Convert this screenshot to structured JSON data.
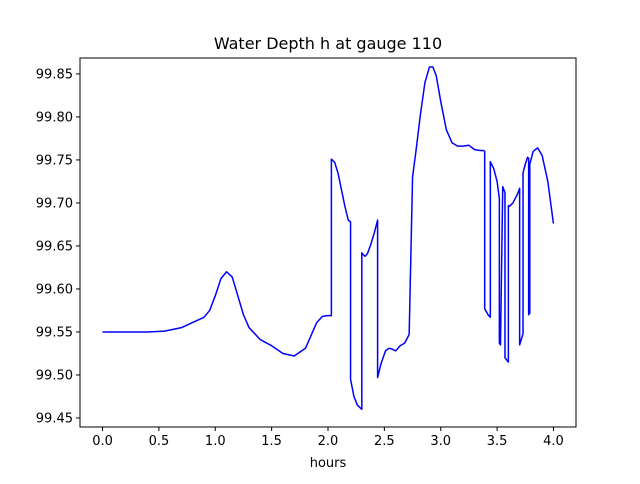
{
  "chart_data": {
    "type": "line",
    "title": "Water Depth h at gauge 110",
    "xlabel": "hours",
    "ylabel": "",
    "xlim": [
      -0.2,
      4.2
    ],
    "ylim": [
      99.4395,
      99.8685
    ],
    "xticks": [
      0.0,
      0.5,
      1.0,
      1.5,
      2.0,
      2.5,
      3.0,
      3.5,
      4.0
    ],
    "xtick_labels": [
      "0.0",
      "0.5",
      "1.0",
      "1.5",
      "2.0",
      "2.5",
      "3.0",
      "3.5",
      "4.0"
    ],
    "yticks": [
      99.45,
      99.5,
      99.55,
      99.6,
      99.65,
      99.7,
      99.75,
      99.8,
      99.85
    ],
    "ytick_labels": [
      "99.45",
      "99.50",
      "99.55",
      "99.60",
      "99.65",
      "99.70",
      "99.75",
      "99.80",
      "99.85"
    ],
    "grid": false,
    "series": [
      {
        "color": "#0000ff",
        "x": [
          0.0,
          0.2,
          0.4,
          0.55,
          0.7,
          0.8,
          0.9,
          0.95,
          1.0,
          1.05,
          1.1,
          1.15,
          1.2,
          1.25,
          1.3,
          1.4,
          1.5,
          1.6,
          1.7,
          1.8,
          1.85,
          1.9,
          1.95,
          1.99,
          2.03,
          2.03,
          2.06,
          2.09,
          2.12,
          2.15,
          2.18,
          2.2,
          2.2,
          2.23,
          2.26,
          2.3,
          2.3,
          2.31,
          2.33,
          2.35,
          2.38,
          2.41,
          2.44,
          2.44,
          2.47,
          2.51,
          2.54,
          2.57,
          2.6,
          2.64,
          2.68,
          2.72,
          2.75,
          2.75,
          2.78,
          2.82,
          2.86,
          2.9,
          2.93,
          2.96,
          3.0,
          3.05,
          3.1,
          3.15,
          3.2,
          3.25,
          3.3,
          3.35,
          3.38,
          3.39,
          3.39,
          3.42,
          3.44,
          3.44,
          3.47,
          3.5,
          3.52,
          3.52,
          3.53,
          3.55,
          3.57,
          3.57,
          3.6,
          3.6,
          3.61,
          3.64,
          3.68,
          3.7,
          3.7,
          3.73,
          3.73,
          3.75,
          3.77,
          3.78,
          3.78,
          3.79,
          3.79,
          3.82,
          3.86,
          3.9,
          3.95,
          4.0
        ],
        "y": [
          99.55,
          99.55,
          99.55,
          99.551,
          99.555,
          99.561,
          99.567,
          99.575,
          99.592,
          99.612,
          99.62,
          99.614,
          99.592,
          99.57,
          99.555,
          99.541,
          99.534,
          99.525,
          99.522,
          99.531,
          99.546,
          99.561,
          99.568,
          99.569,
          99.569,
          99.751,
          99.747,
          99.734,
          99.715,
          99.696,
          99.68,
          99.678,
          99.495,
          99.475,
          99.465,
          99.46,
          99.642,
          99.64,
          99.638,
          99.641,
          99.652,
          99.665,
          99.68,
          99.497,
          99.513,
          99.528,
          99.531,
          99.53,
          99.528,
          99.534,
          99.537,
          99.547,
          99.73,
          99.73,
          99.76,
          99.803,
          99.84,
          99.858,
          99.858,
          99.848,
          99.818,
          99.785,
          99.77,
          99.766,
          99.766,
          99.767,
          99.762,
          99.761,
          99.761,
          99.76,
          99.577,
          99.57,
          99.567,
          99.748,
          99.74,
          99.725,
          99.705,
          99.537,
          99.535,
          99.719,
          99.712,
          99.52,
          99.515,
          99.697,
          99.696,
          99.7,
          99.71,
          99.717,
          99.535,
          99.548,
          99.735,
          99.745,
          99.753,
          99.752,
          99.57,
          99.572,
          99.745,
          99.76,
          99.764,
          99.755,
          99.725,
          99.676
        ]
      }
    ]
  }
}
